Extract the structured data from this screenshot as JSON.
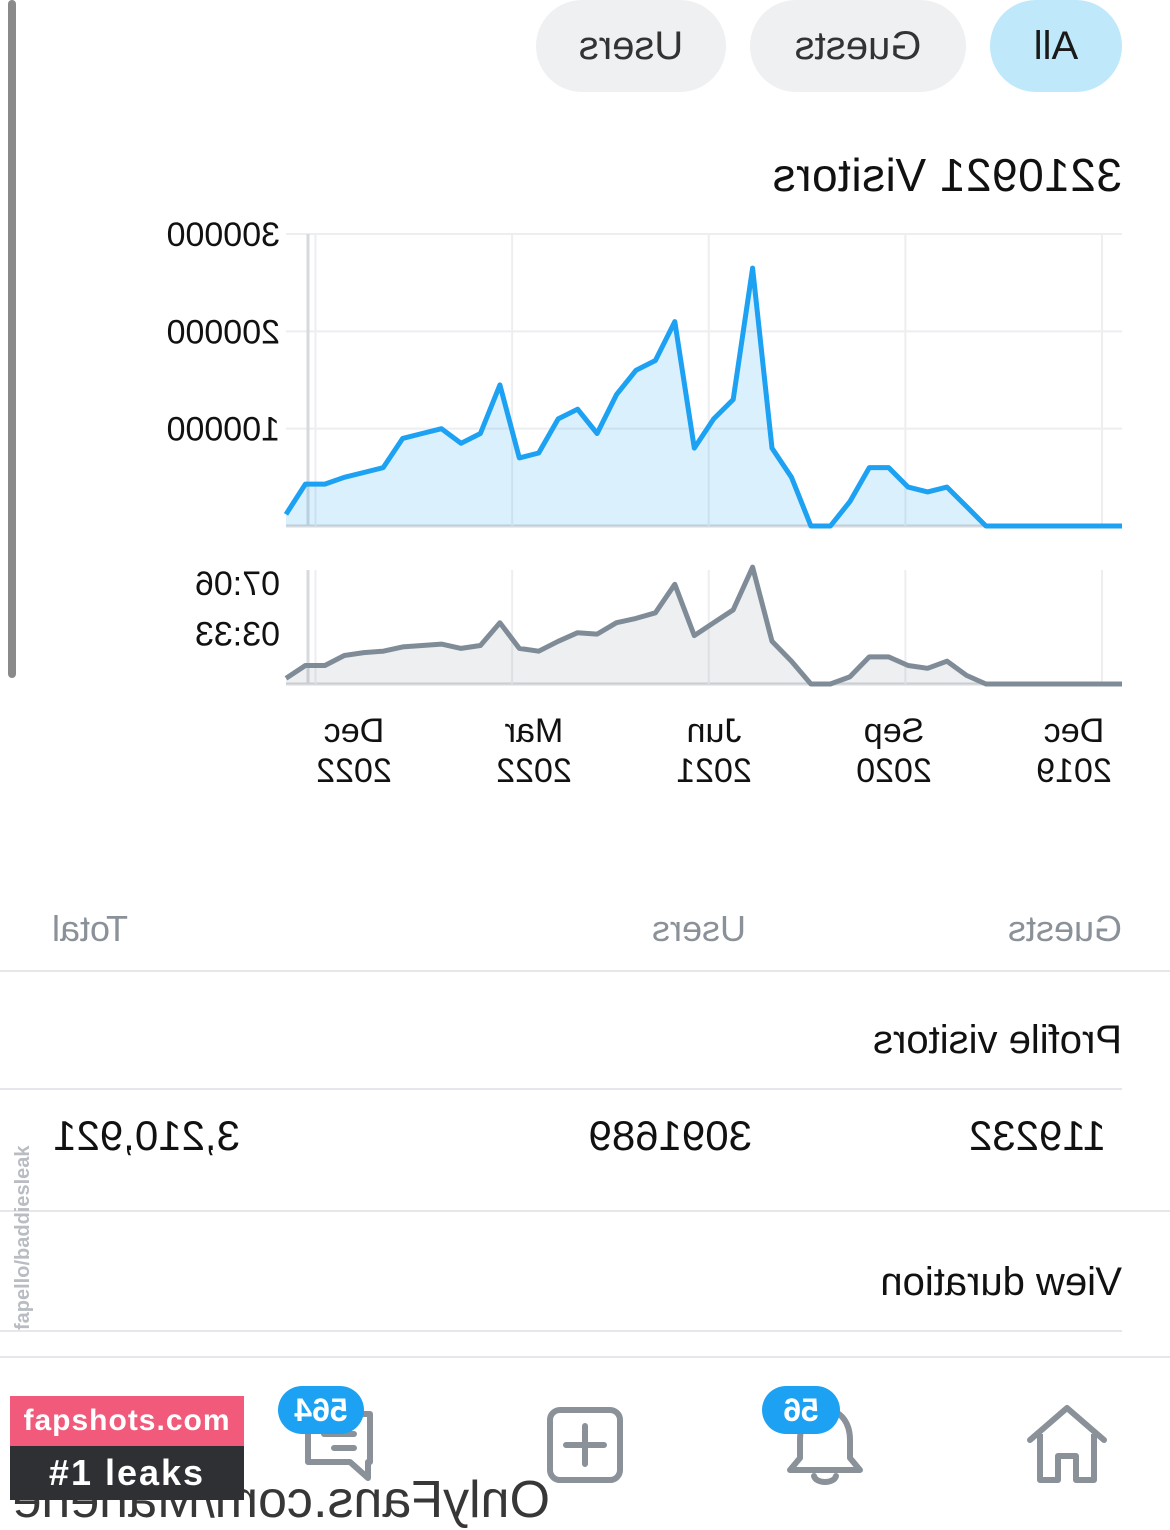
{
  "filters": {
    "all": "All",
    "guests": "Guests",
    "users": "Users"
  },
  "visitors_title": "3210921 Visitors",
  "chart_data": [
    {
      "type": "area",
      "title": "",
      "y_ticks": [
        "100000",
        "200000",
        "300000"
      ],
      "x_ticks": [
        "Dec\n2019",
        "Sep\n2020",
        "Jun\n2021",
        "Mar\n2022",
        "Dec\n2022"
      ],
      "x_start": "Dec 2019",
      "x_end": "Dec 2022",
      "ylim": [
        0,
        300000
      ],
      "values": [
        0,
        0,
        0,
        0,
        0,
        0,
        0,
        0,
        20000,
        40000,
        35000,
        40000,
        60000,
        60000,
        25000,
        0,
        0,
        50000,
        80000,
        265000,
        130000,
        110000,
        80000,
        210000,
        170000,
        160000,
        135000,
        95000,
        120000,
        110000,
        75000,
        70000,
        145000,
        95000,
        85000,
        100000,
        95000,
        90000,
        60000,
        55000,
        50000,
        43000,
        43000,
        12000
      ],
      "grid": true,
      "color": "#1da1f2"
    },
    {
      "type": "area",
      "title": "",
      "y_ticks": [
        "03:33",
        "07:06"
      ],
      "x_ticks": [
        "Dec\n2019",
        "Sep\n2020",
        "Jun\n2021",
        "Mar\n2022",
        "Dec\n2022"
      ],
      "ylim": [
        0,
        8
      ],
      "values": [
        0,
        0,
        0,
        0,
        0,
        0,
        0,
        0,
        0.6,
        1.6,
        1.1,
        1.3,
        1.9,
        1.9,
        0.5,
        0,
        0,
        1.6,
        3,
        8.2,
        5.2,
        4.3,
        3.4,
        7,
        5,
        4.6,
        4.3,
        3.5,
        3.6,
        3,
        2.3,
        2.5,
        4.3,
        2.7,
        2.5,
        2.8,
        2.7,
        2.6,
        2.3,
        2.2,
        2.0,
        1.3,
        1.3,
        0.4
      ],
      "grid": true,
      "color": "#7f8c98"
    }
  ],
  "table": {
    "headers": {
      "guests": "Guests",
      "users": "Users",
      "total": "Total"
    },
    "profile_visitors": {
      "label": "Profile visitors",
      "guests": "119232",
      "users": "3091689",
      "total": "3,210,921"
    },
    "view_duration": {
      "label": "View duration"
    }
  },
  "bottom_nav": {
    "notifications_badge": "56",
    "messages_badge": "564",
    "partial_text": "OnlyFans.com/Marierie"
  },
  "watermark": {
    "line1": "fapshots.com",
    "line2": "#1 leaks",
    "vertical": "fapello/baddiesleak"
  },
  "colors": {
    "accent": "#1da1f2",
    "chip_active": "#bfe9fb",
    "chip_inactive": "#eef0f2"
  },
  "icons": {
    "home": "home-icon",
    "notifications": "bell-icon",
    "add": "add-post-icon",
    "messages": "messages-icon"
  }
}
